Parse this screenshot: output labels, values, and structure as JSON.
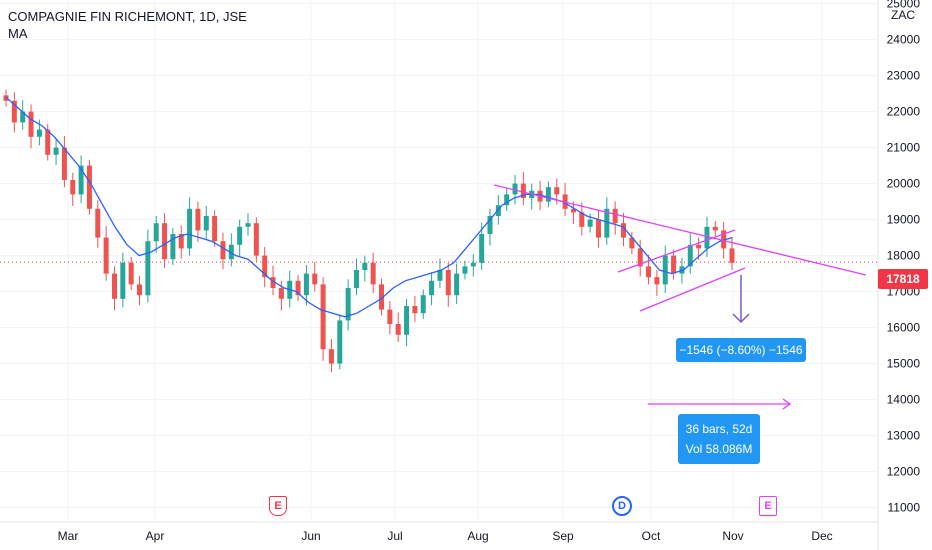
{
  "header": {
    "symbol_line": "COMPAGNIE FIN RICHEMONT, 1D, JSE",
    "indicator": "MA"
  },
  "currency": "ZAC",
  "last_price": "17818",
  "colors": {
    "up": "#26a69a",
    "down": "#ef5350",
    "ma": "#2962ff",
    "trendline": "#e040fb",
    "last_price_line": "#f23645",
    "measure_box": "#2196f3"
  },
  "measure": {
    "price_change": "−1546 (−8.60%) −1546",
    "bars": "36 bars, 52d",
    "volume": "Vol 58.086M"
  },
  "events": {
    "earnings_1": "E",
    "dividend": "D",
    "earnings_2": "E"
  },
  "chart_data": {
    "type": "candlestick",
    "title": "COMPAGNIE FIN RICHEMONT, 1D, JSE",
    "y_axis": {
      "label": "ZAC",
      "ticks": [
        11000,
        12000,
        13000,
        14000,
        15000,
        16000,
        17000,
        18000,
        19000,
        20000,
        21000,
        22000,
        23000,
        24000,
        25000
      ],
      "ylim": [
        10600,
        25100
      ]
    },
    "x_axis": {
      "ticks": [
        "Mar",
        "Apr",
        "Jun",
        "Jul",
        "Aug",
        "Sep",
        "Oct",
        "Nov",
        "Dec"
      ]
    },
    "series": [
      {
        "name": "Close",
        "values": [
          22300,
          21700,
          22000,
          21300,
          21500,
          20800,
          21000,
          20100,
          19700,
          20500,
          19300,
          18500,
          17500,
          16800,
          17800,
          17200,
          16900,
          18400,
          18900,
          17900,
          18600,
          18200,
          19300,
          18700,
          19100,
          18400,
          17900,
          18300,
          18800,
          18900,
          18000,
          17400,
          17100,
          16800,
          17300,
          16900,
          17500,
          17200,
          15400,
          15000,
          16200,
          17100,
          17600,
          17800,
          17200,
          16500,
          16100,
          15800,
          16600,
          16400,
          16900,
          17300,
          17600,
          16900,
          17500,
          17700,
          17800,
          18600,
          19100,
          19400,
          19700,
          20000,
          19600,
          19800,
          19500,
          19900,
          19700,
          19300,
          19200,
          18800,
          19000,
          18500,
          19300,
          18900,
          18500,
          18200,
          17700,
          17400,
          17200,
          18000,
          17500,
          17700,
          18300,
          18200,
          18800,
          18700,
          18200,
          17800
        ]
      },
      {
        "name": "MA",
        "values": [
          22400,
          22100,
          21800,
          21600,
          21300,
          20900,
          20500,
          20000,
          19400,
          18800,
          18300,
          18000,
          18100,
          18300,
          18500,
          18600,
          18500,
          18400,
          18200,
          18000,
          17900,
          17600,
          17300,
          17100,
          17000,
          16700,
          16500,
          16400,
          16300,
          16400,
          16600,
          16800,
          17100,
          17300,
          17400,
          17500,
          17600,
          17800,
          18200,
          18600,
          19000,
          19400,
          19600,
          19700,
          19700,
          19600,
          19500,
          19300,
          19100,
          19000,
          18900,
          18800,
          18400,
          18000,
          17600,
          17500,
          17600,
          17900,
          18200,
          18400,
          18500
        ]
      }
    ],
    "annotations": {
      "last_price": 17818,
      "price_change": -1546,
      "price_change_percent": -8.6,
      "bars": 36,
      "days": 52,
      "volume": "58.086M"
    }
  }
}
